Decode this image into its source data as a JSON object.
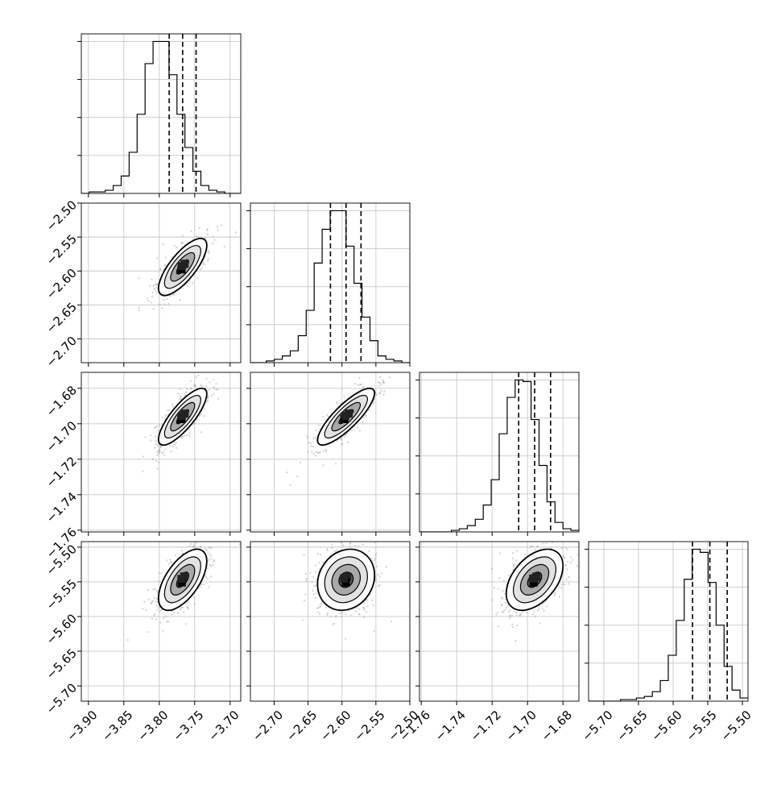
{
  "chart_data": {
    "type": "corner",
    "grid": true,
    "parameters": [
      {
        "range": [
          -3.91,
          -3.685
        ],
        "ticks": [
          -3.9,
          -3.85,
          -3.8,
          -3.75,
          -3.7
        ],
        "tick_labels": [
          "−3.90",
          "−3.85",
          "−3.80",
          "−3.75",
          "−3.70"
        ],
        "quantiles": [
          -3.786,
          -3.767,
          -3.748
        ],
        "mean": -3.767,
        "sd": 0.017
      },
      {
        "range": [
          -2.735,
          -2.5
        ],
        "ticks": [
          -2.7,
          -2.65,
          -2.6,
          -2.55,
          -2.5
        ],
        "tick_labels": [
          "−2.70",
          "−2.65",
          "−2.60",
          "−2.55",
          "−2.50"
        ],
        "quantiles": [
          -2.617,
          -2.594,
          -2.572
        ],
        "mean": -2.594,
        "sd": 0.021
      },
      {
        "range": [
          -1.761,
          -1.671
        ],
        "ticks": [
          -1.76,
          -1.74,
          -1.72,
          -1.7,
          -1.68
        ],
        "tick_labels": [
          "−1.76",
          "−1.74",
          "−1.72",
          "−1.70",
          "−1.68"
        ],
        "quantiles": [
          -1.705,
          -1.696,
          -1.687
        ],
        "mean": -1.696,
        "sd": 0.008
      },
      {
        "range": [
          -5.722,
          -5.492
        ],
        "ticks": [
          -5.7,
          -5.65,
          -5.6,
          -5.55,
          -5.5
        ],
        "tick_labels": [
          "−5.70",
          "−5.65",
          "−5.60",
          "−5.55",
          "−5.50"
        ],
        "quantiles": [
          -5.572,
          -5.547,
          -5.522
        ],
        "mean": -5.547,
        "sd": 0.022
      }
    ],
    "histograms": [
      [
        0,
        1,
        1,
        2,
        5,
        11,
        26,
        50,
        82,
        96,
        96,
        75,
        50,
        29,
        14,
        5,
        2,
        1,
        0,
        0
      ],
      [
        0,
        0,
        1,
        2,
        4,
        7,
        16,
        31,
        59,
        79,
        90,
        90,
        69,
        47,
        27,
        13,
        4,
        2,
        1,
        0
      ],
      [
        0,
        0,
        0,
        0,
        1,
        2,
        4,
        8,
        17,
        33,
        62,
        85,
        96,
        95,
        71,
        42,
        19,
        6,
        2,
        1
      ],
      [
        0,
        0,
        0,
        0,
        1,
        1,
        2,
        3,
        6,
        13,
        29,
        51,
        77,
        96,
        94,
        75,
        48,
        22,
        7,
        2
      ]
    ],
    "correlations": {
      "1-0": 0.75,
      "2-0": 0.8,
      "2-1": 0.83,
      "3-0": 0.6,
      "3-1": 0.15,
      "3-2": 0.45
    },
    "contour_levels_sigma": [
      0.5,
      1.0,
      1.5,
      2.0
    ]
  }
}
